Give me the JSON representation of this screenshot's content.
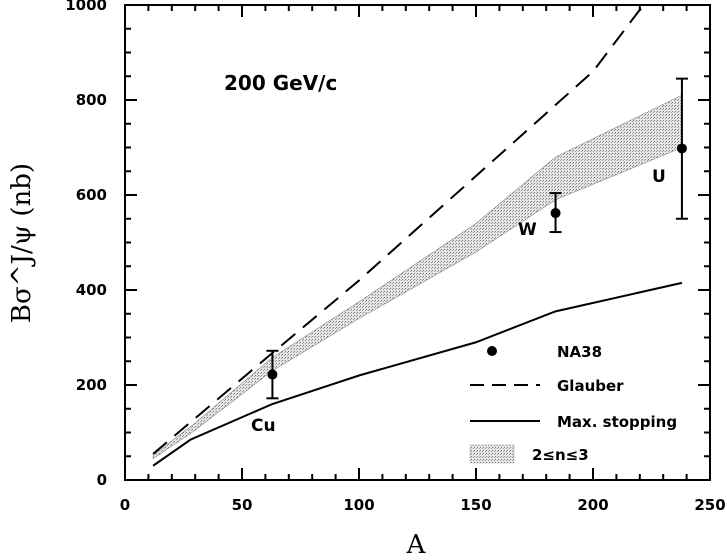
{
  "chart_data": {
    "type": "line",
    "annotation": "200 GeV/c",
    "xlabel": "A",
    "ylabel": "Bσ^J/ψ (nb)",
    "xlim": [
      0,
      250
    ],
    "ylim": [
      0,
      1000
    ],
    "xticks": [
      0,
      50,
      100,
      150,
      200,
      250
    ],
    "yticks": [
      0,
      200,
      400,
      600,
      800,
      1000
    ],
    "x_tick_labels": [
      "0",
      "50",
      "100",
      "150",
      "200",
      "250"
    ],
    "y_tick_labels": [
      "0",
      "200",
      "400",
      "600",
      "800",
      "1000"
    ],
    "legend": {
      "data_label": "NA38",
      "glauber_label": "Glauber",
      "stopping_label": "Max. stopping",
      "band_label": "2≤n≤3"
    },
    "series": [
      {
        "name": "Glauber",
        "style": "dashed",
        "points": [
          [
            12,
            55
          ],
          [
            30,
            130
          ],
          [
            60,
            255
          ],
          [
            100,
            420
          ],
          [
            150,
            640
          ],
          [
            200,
            860
          ],
          [
            220,
            990
          ],
          [
            223,
            1000
          ]
        ]
      },
      {
        "name": "Max. stopping",
        "style": "solid",
        "points": [
          [
            12,
            30
          ],
          [
            28,
            85
          ],
          [
            63,
            160
          ],
          [
            100,
            220
          ],
          [
            150,
            290
          ],
          [
            184,
            355
          ],
          [
            238,
            415
          ]
        ]
      }
    ],
    "band": {
      "name": "2≤n≤3",
      "upper": [
        [
          12,
          52
        ],
        [
          30,
          120
        ],
        [
          63,
          258
        ],
        [
          100,
          375
        ],
        [
          150,
          540
        ],
        [
          184,
          680
        ],
        [
          238,
          810
        ]
      ],
      "lower": [
        [
          12,
          45
        ],
        [
          30,
          105
        ],
        [
          63,
          230
        ],
        [
          100,
          340
        ],
        [
          150,
          480
        ],
        [
          184,
          590
        ],
        [
          238,
          700
        ]
      ]
    },
    "data_points": [
      {
        "label": "Cu",
        "x": 63,
        "y": 222,
        "err_low": 172,
        "err_high": 272
      },
      {
        "label": "W",
        "x": 184,
        "y": 562,
        "err_low": 522,
        "err_high": 604
      },
      {
        "label": "U",
        "x": 238,
        "y": 698,
        "err_low": 550,
        "err_high": 845
      }
    ]
  }
}
